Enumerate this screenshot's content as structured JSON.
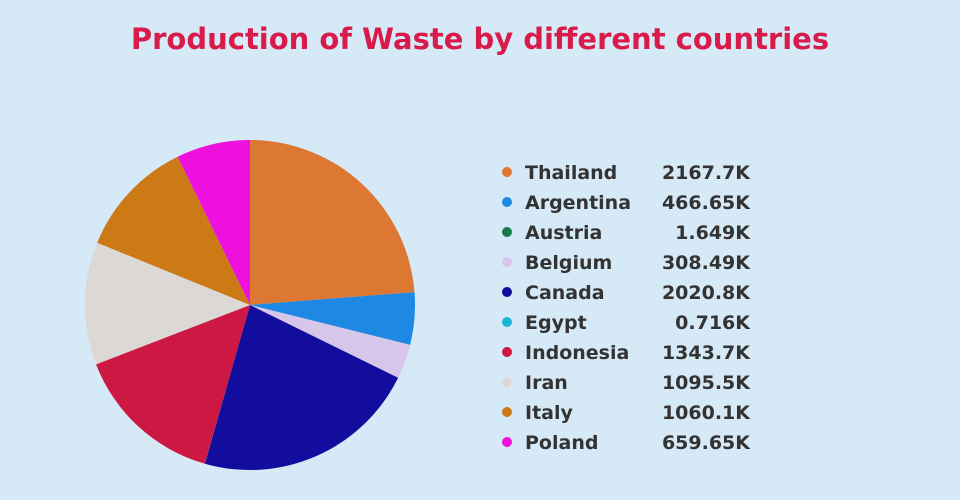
{
  "chart_data": {
    "type": "pie",
    "title": "Production of Waste by different countries",
    "legend_position": "right",
    "slices": [
      {
        "label": "Thailand",
        "value": 2167.7,
        "display": "2167.7K",
        "color": "#dd7833"
      },
      {
        "label": "Argentina",
        "value": 466.65,
        "display": "466.65K",
        "color": "#1e88e5"
      },
      {
        "label": "Austria",
        "value": 1.649,
        "display": "1.649K",
        "color": "#1b7a4a"
      },
      {
        "label": "Belgium",
        "value": 308.49,
        "display": "308.49K",
        "color": "#d8c6ea"
      },
      {
        "label": "Canada",
        "value": 2020.8,
        "display": "2020.8K",
        "color": "#130d9e"
      },
      {
        "label": "Egypt",
        "value": 0.716,
        "display": "0.716K",
        "color": "#16b8d6"
      },
      {
        "label": "Indonesia",
        "value": 1343.7,
        "display": "1343.7K",
        "color": "#cc1843"
      },
      {
        "label": "Iran",
        "value": 1095.5,
        "display": "1095.5K",
        "color": "#dcd8d6"
      },
      {
        "label": "Italy",
        "value": 1060.1,
        "display": "1060.1K",
        "color": "#cc7a16"
      },
      {
        "label": "Poland",
        "value": 659.65,
        "display": "659.65K",
        "color": "#ee10dd"
      }
    ]
  }
}
